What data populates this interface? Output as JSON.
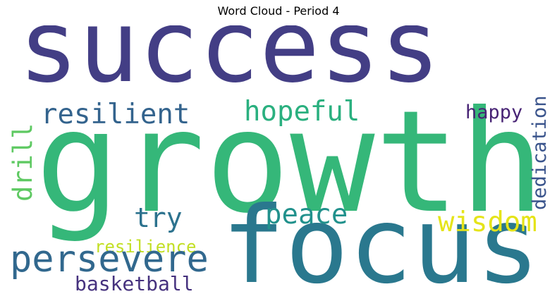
{
  "title": "Word Cloud - Period 4",
  "words": [
    {
      "text": "success",
      "color": "#433e85"
    },
    {
      "text": "growth",
      "color": "#35b779"
    },
    {
      "text": "focus",
      "color": "#2a788e"
    },
    {
      "text": "resilient",
      "color": "#33638d"
    },
    {
      "text": "hopeful",
      "color": "#2ab07f"
    },
    {
      "text": "happy",
      "color": "#482475"
    },
    {
      "text": "dedication",
      "color": "#3a548c"
    },
    {
      "text": "drill",
      "color": "#5ec962"
    },
    {
      "text": "try",
      "color": "#2c728e"
    },
    {
      "text": "peace",
      "color": "#21918c"
    },
    {
      "text": "wisdom",
      "color": "#e5e419"
    },
    {
      "text": "resilience",
      "color": "#c2df23"
    },
    {
      "text": "persevere",
      "color": "#31688e"
    },
    {
      "text": "basketball",
      "color": "#46327e"
    }
  ]
}
